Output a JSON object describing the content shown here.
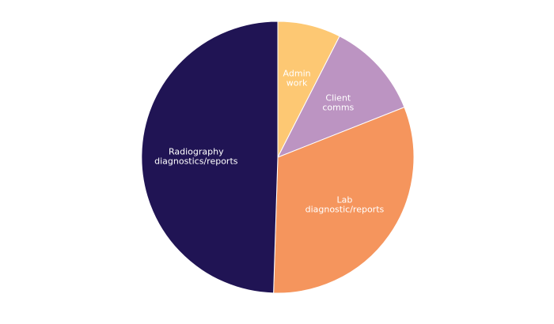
{
  "chart_data": {
    "type": "pie",
    "title": "",
    "start_angle_deg": 90,
    "direction": "clockwise",
    "slices": [
      {
        "label_lines": [
          "Admin",
          "work"
        ],
        "value": 7.5,
        "color": "#fdc873",
        "label_color": "#ffffff"
      },
      {
        "label_lines": [
          "Client",
          "comms"
        ],
        "value": 11.5,
        "color": "#bc94c2",
        "label_color": "#ffffff"
      },
      {
        "label_lines": [
          "Lab",
          "diagnostic/reports"
        ],
        "value": 31.5,
        "color": "#f5955d",
        "label_color": "#ffffff"
      },
      {
        "label_lines": [
          "Radiography",
          "diagnostics/reports"
        ],
        "value": 49.5,
        "color": "#201454",
        "label_color": "#ffffff"
      }
    ]
  }
}
